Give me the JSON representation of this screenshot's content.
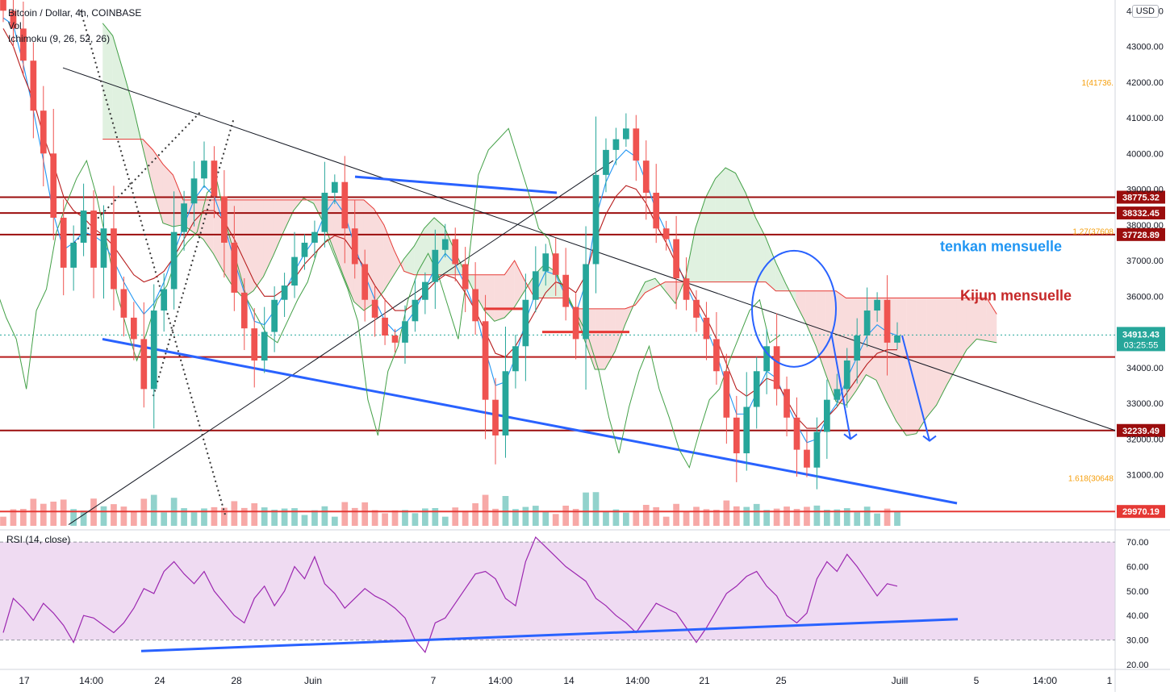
{
  "header": {
    "symbol": "Bitcoin / Dollar, 4h, COINBASE",
    "volume_label": "Vol",
    "indicator_label": "Ichimoku (9, 26, 52, 26)",
    "currency": "USD"
  },
  "rsi": {
    "label": "RSI (14, close)",
    "y_ticks": [
      "70.00",
      "60.00",
      "50.00",
      "40.00",
      "30.00",
      "20.00"
    ],
    "upper_band": 70,
    "lower_band": 30
  },
  "price_axis": {
    "ticks": [
      "44000.00",
      "43000.00",
      "42000.00",
      "41000.00",
      "40000.00",
      "39000.00",
      "38000.00",
      "37000.00",
      "36000.00",
      "35000.00",
      "34000.00",
      "33000.00",
      "32000.00",
      "31000.00"
    ],
    "current_price": "34913.43",
    "countdown": "03:25:55"
  },
  "levels": [
    {
      "label": "38775.32",
      "price": 38775.32,
      "color": "#9b0d0d"
    },
    {
      "label": "38332.45",
      "price": 38332.45,
      "color": "#9b0d0d"
    },
    {
      "label": "37728.89",
      "price": 37728.89,
      "color": "#9b0d0d"
    },
    {
      "label": "32239.49",
      "price": 32239.49,
      "color": "#9b0d0d"
    },
    {
      "label": "29970.19",
      "price": 29970.19,
      "color": "#e53935"
    }
  ],
  "fib_labels": [
    {
      "text": "1(41736.",
      "price": 41900
    },
    {
      "text": "1.27(37608",
      "price": 37740
    },
    {
      "text": "1.618(30648",
      "price": 30820
    }
  ],
  "x_axis": {
    "ticks": [
      "17",
      "14:00",
      "24",
      "28",
      "Juin",
      "7",
      "14:00",
      "14",
      "14:00",
      "21",
      "25",
      "Juill",
      "5",
      "14:00",
      "1"
    ]
  },
  "annotations": {
    "tenkan_text": "tenkan mensuelle",
    "kijun_text": "Kijun mensuelle"
  },
  "colors": {
    "up": "#26a69a",
    "down": "#ef5350",
    "cloud_bull": "#a5d6a7",
    "cloud_bear": "#ef9a9a",
    "trend_blue": "#2962ff",
    "tenkan_color": "#2196f3",
    "kijun_color": "#b71c1c",
    "rsi_line": "#9c27b0",
    "rsi_band": "#e1bee7"
  },
  "chart_data": {
    "type": "line",
    "title": "Bitcoin / Dollar, 4h, COINBASE",
    "series": [
      {
        "name": "Bitcoin / Dollar",
        "values": [
          44000,
          43500,
          42600,
          41200,
          40000,
          38200,
          36800,
          37500,
          38400,
          36800,
          37900,
          36200,
          35400,
          34800,
          33400,
          35600,
          36200,
          37800,
          38600,
          39300,
          39800,
          38800,
          37500,
          36100,
          35100,
          34200,
          35000,
          35900,
          36300,
          37100,
          37500,
          37800,
          38900,
          39200,
          37900,
          36900,
          35900,
          35400,
          34900,
          34700,
          35300,
          35900,
          36400,
          37300,
          37600,
          36900,
          36200,
          35300,
          33100,
          32100,
          33900,
          34600,
          35900,
          36700,
          37200,
          36600,
          35700,
          34800,
          36900,
          39400,
          40100,
          40400,
          40700,
          39800,
          38900,
          37900,
          37600,
          36500,
          35900,
          35400,
          34800,
          33900,
          32600,
          31600,
          32900,
          33900,
          34600,
          33400,
          32600,
          31700,
          31200,
          32200,
          33100,
          33400,
          34200,
          34900,
          35600,
          35900,
          34700,
          34900
        ]
      }
    ],
    "ylim": [
      29500,
      44300
    ],
    "rsi_values": [
      33,
      47,
      43,
      38,
      45,
      41,
      36,
      29,
      40,
      39,
      36,
      33,
      37,
      43,
      51,
      49,
      58,
      62,
      57,
      53,
      58,
      50,
      45,
      40,
      37,
      47,
      52,
      44,
      50,
      60,
      55,
      64,
      53,
      49,
      43,
      47,
      51,
      48,
      46,
      43,
      39,
      30,
      25,
      37,
      39,
      45,
      51,
      57,
      58,
      55,
      47,
      44,
      62,
      72,
      68,
      64,
      60,
      57,
      54,
      47,
      44,
      40,
      37,
      33,
      39,
      45,
      43,
      41,
      35,
      29,
      35,
      42,
      49,
      52,
      56,
      58,
      52,
      48,
      40,
      37,
      41,
      55,
      62,
      58,
      65,
      60,
      54,
      48,
      53,
      52
    ],
    "rsi_ylim": [
      18,
      74
    ],
    "tenkan_values": [
      43800,
      43600,
      42500,
      41200,
      39800,
      38300,
      37300,
      37500,
      37800,
      37700,
      37500,
      37000,
      36400,
      35900,
      35500,
      35800,
      36400,
      37200,
      38000,
      38700,
      39100,
      38800,
      38000,
      37000,
      36100,
      35300,
      35200,
      35600,
      36100,
      36700,
      37200,
      37600,
      38300,
      38700,
      38300,
      37400,
      36600,
      35900,
      35300,
      35000,
      35200,
      35600,
      36200,
      36800,
      37200,
      36900,
      36300,
      35600,
      34500,
      33500,
      33600,
      34300,
      35300,
      36100,
      36700,
      36600,
      36000,
      35500,
      36400,
      38200,
      39200,
      39800,
      40100,
      39900,
      39200,
      38400,
      37800,
      37000,
      36300,
      35700,
      35100,
      34400,
      33500,
      32700,
      32700,
      33300,
      33900,
      33700,
      33000,
      32400,
      31900,
      32000,
      32600,
      33000,
      33700,
      34300,
      34900,
      35200,
      35000,
      34900
    ],
    "kijun_values": [
      43500,
      43000,
      42200,
      41500,
      40500,
      39700,
      38800,
      38400,
      38200,
      37900,
      37700,
      37400,
      37000,
      36600,
      36400,
      36500,
      36700,
      37100,
      37600,
      38100,
      38400,
      38400,
      38100,
      37600,
      37000,
      36400,
      36000,
      36000,
      36200,
      36500,
      36900,
      37200,
      37500,
      37700,
      37600,
      37200,
      36800,
      36300,
      35900,
      35600,
      35600,
      35800,
      36100,
      36400,
      36600,
      36500,
      36100,
      35600,
      35000,
      34400,
      34300,
      34600,
      35100,
      35600,
      36100,
      36400,
      36300,
      36100,
      36600,
      37600,
      38300,
      38800,
      39100,
      39000,
      38600,
      38000,
      37500,
      36900,
      36400,
      35900,
      35400,
      34800,
      34100,
      33400,
      33200,
      33400,
      33700,
      33600,
      33100,
      32600,
      32300,
      32300,
      32600,
      32900,
      33300,
      33700,
      34100,
      34400,
      34500,
      34500
    ]
  }
}
